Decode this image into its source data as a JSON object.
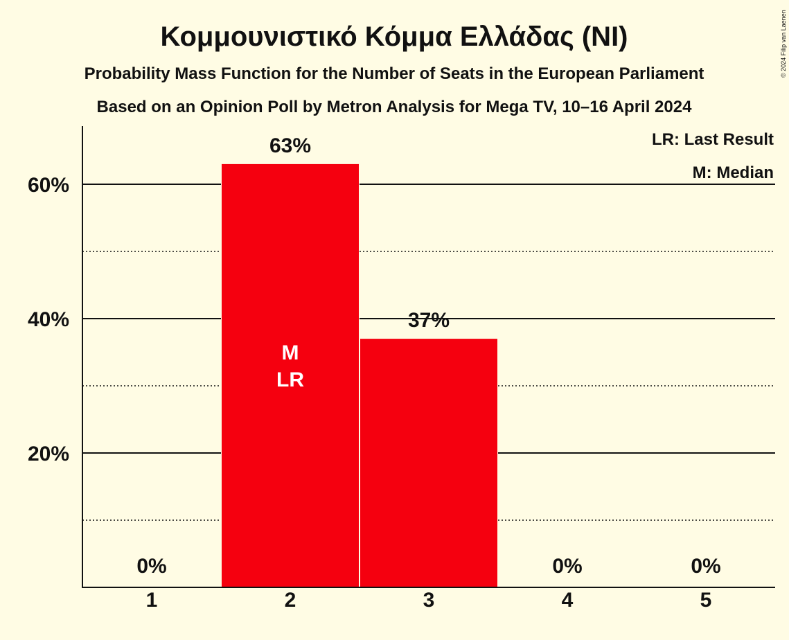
{
  "colors": {
    "background": "#FFFCE4",
    "bar": "#F5000F",
    "text": "#111111",
    "inner_text": "#FFFFFF"
  },
  "chart_data": {
    "type": "bar",
    "title": "Κομμουνιστικό Κόμμα Ελλάδας (NI)",
    "subtitle": "Probability Mass Function for the Number of Seats in the European Parliament",
    "subtitle2": "Based on an Opinion Poll by Metron Analysis for Mega TV, 10–16 April 2024",
    "copyright": "© 2024 Filip van Laenen",
    "legend": [
      "LR: Last Result",
      "M: Median"
    ],
    "legend_position": "top-right",
    "categories": [
      "1",
      "2",
      "3",
      "4",
      "5"
    ],
    "values": [
      0,
      63,
      37,
      0,
      0
    ],
    "value_labels": [
      "0%",
      "63%",
      "37%",
      "0%",
      "0%"
    ],
    "inner_labels": [
      [],
      [
        "M",
        "LR"
      ],
      [],
      [],
      []
    ],
    "y_ticks": [
      {
        "value": 20,
        "label": "20%"
      },
      {
        "value": 40,
        "label": "40%"
      },
      {
        "value": 60,
        "label": "60%"
      }
    ],
    "y_minor_ticks": [
      10,
      30,
      50
    ],
    "ylim": [
      0,
      68
    ],
    "grid": true
  }
}
